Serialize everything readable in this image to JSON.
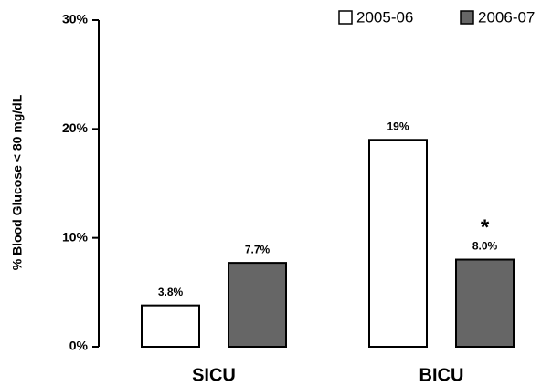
{
  "chart_data": {
    "type": "bar",
    "y_label": "% Blood Glucose < 80 mg/dL",
    "categories": [
      "SICU",
      "BICU"
    ],
    "series": [
      {
        "name": "2005-06",
        "color": "#ffffff",
        "values": [
          3.8,
          19
        ],
        "value_labels": [
          "3.8%",
          "19%"
        ]
      },
      {
        "name": "2006-07",
        "color": "#666666",
        "values": [
          7.7,
          8.0
        ],
        "value_labels": [
          "7.7%",
          "8.0%"
        ],
        "annotations": [
          null,
          "*"
        ]
      }
    ],
    "ylim": [
      0,
      30
    ],
    "yticks": [
      {
        "value": 0,
        "label": "0%"
      },
      {
        "value": 10,
        "label": "10%"
      },
      {
        "value": 20,
        "label": "20%"
      },
      {
        "value": 30,
        "label": "30%"
      }
    ],
    "grid": false,
    "legend": "top-right"
  }
}
